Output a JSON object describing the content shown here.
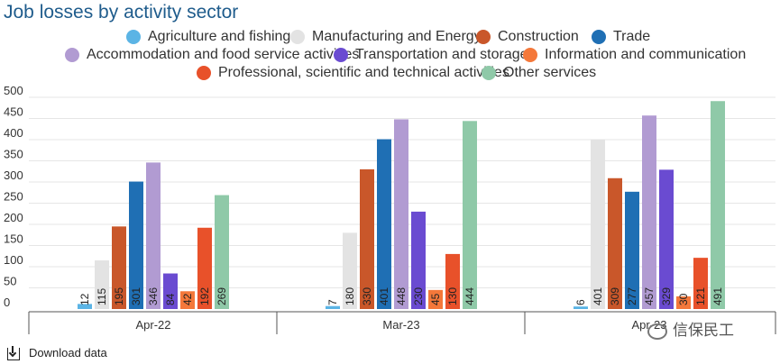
{
  "title": "Job losses by activity sector",
  "download_label": "Download data",
  "watermark_text": "信保民工",
  "chart_data": {
    "type": "bar",
    "title": "Job losses by activity sector",
    "categories": [
      "Apr-22",
      "Mar-23",
      "Apr-23"
    ],
    "y_ticks": [
      "0",
      "50",
      "100",
      "150",
      "200",
      "250",
      "300",
      "350",
      "400",
      "450",
      "500"
    ],
    "ylim": [
      0,
      500
    ],
    "grid": true,
    "legend_position": "top",
    "series": [
      {
        "name": "Agriculture and fishing",
        "color": "#5bb4e5",
        "values": [
          12,
          7,
          6
        ]
      },
      {
        "name": "Manufacturing and Energy",
        "color": "#e3e3e3",
        "values": [
          115,
          180,
          401
        ]
      },
      {
        "name": "Construction",
        "color": "#c9572a",
        "values": [
          195,
          330,
          309
        ]
      },
      {
        "name": "Trade",
        "color": "#1f6fb4",
        "values": [
          301,
          401,
          277
        ]
      },
      {
        "name": "Accommodation and food service activities",
        "color": "#b19bd2",
        "values": [
          346,
          448,
          457
        ]
      },
      {
        "name": "Transportation and storage",
        "color": "#6a4bd1",
        "values": [
          84,
          230,
          329
        ]
      },
      {
        "name": "Information and communication",
        "color": "#f4783a",
        "values": [
          42,
          45,
          30
        ]
      },
      {
        "name": "Professional, scientific and technical activities",
        "color": "#e8512a",
        "values": [
          192,
          130,
          121
        ]
      },
      {
        "name": "Other services",
        "color": "#8fc9a8",
        "values": [
          269,
          444,
          491
        ]
      }
    ]
  }
}
